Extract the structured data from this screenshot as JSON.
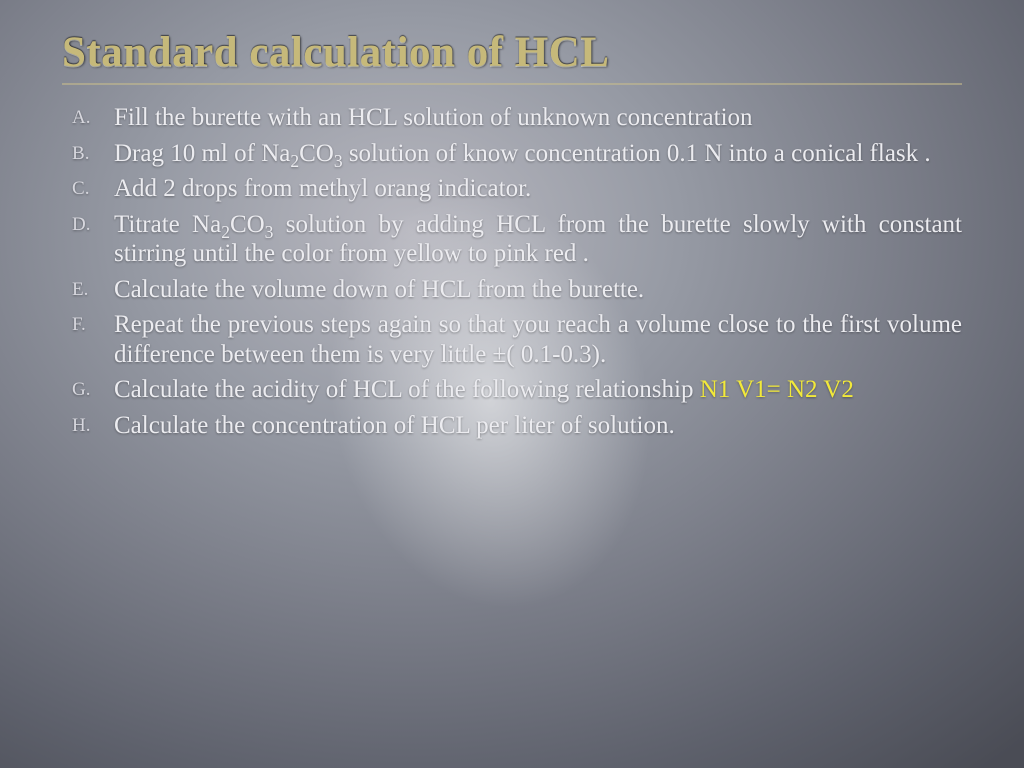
{
  "background": {
    "gradient_center": "#b8b8c0",
    "gradient_mid": "#7a7d88",
    "gradient_edge": "#4a4c55",
    "glow_color": "rgba(255,255,255,0.55)"
  },
  "title": {
    "text": "Standard calculation of HCL",
    "color": "#c6b97a",
    "fontsize": 43,
    "underline_color": "rgba(200,190,140,0.55)"
  },
  "body_style": {
    "text_color": "#ececf0",
    "fontsize": 25,
    "marker_fontsize": 19,
    "formula_color": "#f2e93a",
    "font_family": "Palatino Linotype"
  },
  "steps": [
    {
      "label": "A",
      "text": "Fill the burette with an HCL solution  of unknown concentration"
    },
    {
      "label": "B",
      "pre": "Drag 10 ml of   Na",
      "sub1": "2",
      "mid": "CO",
      "sub2": "3",
      "post": " solution of know concentration 0.1 N into a conical flask ."
    },
    {
      "label": "C",
      "text": "Add 2 drops from methyl orang indicator."
    },
    {
      "label": "D",
      "pre": " Titrate  Na",
      "sub1": "2",
      "mid": "CO",
      "sub2": "3",
      "post": "   solution by adding HCL from the burette slowly with constant  stirring until the color from yellow to pink red ."
    },
    {
      "label": "E",
      "text": "Calculate the volume down of HCL  from the burette."
    },
    {
      "label": "F",
      "text": " Repeat the previous steps again so that you reach a volume close to the first volume difference between them is very little ±( 0.1-0.3)."
    },
    {
      "label": "G",
      "pre": "Calculate the acidity of HCL    of the following relationship   ",
      "formula": "N1 V1= N2 V2"
    },
    {
      "label": "H",
      "text": "Calculate the concentration of HCL per liter of solution."
    }
  ]
}
